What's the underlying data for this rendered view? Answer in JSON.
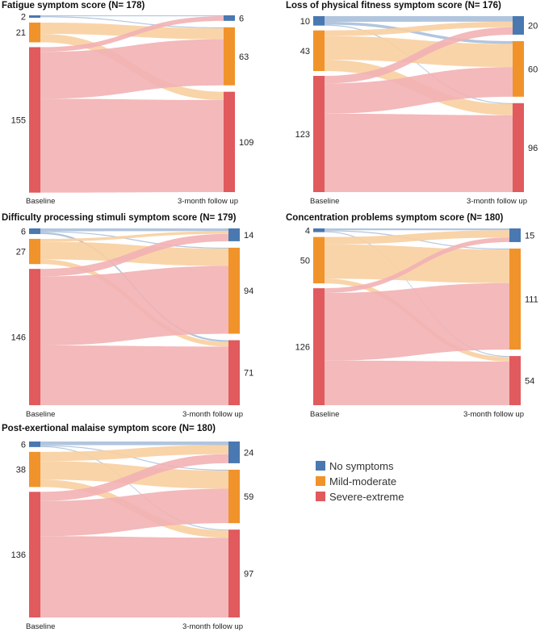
{
  "chart_data": [
    {
      "type": "sankey",
      "title": "Fatigue symptom score (N= 178)",
      "left_label": "Baseline",
      "right_label": "3-month follow up",
      "baseline": [
        2,
        21,
        155
      ],
      "followup": [
        6,
        63,
        109
      ],
      "flows": [
        [
          1,
          1,
          0
        ],
        [
          0,
          12,
          9
        ],
        [
          5,
          50,
          100
        ]
      ]
    },
    {
      "type": "sankey",
      "title": "Loss of physical fitness symptom score (N= 176)",
      "left_label": "Baseline",
      "right_label": "3-month follow up",
      "baseline": [
        10,
        43,
        123
      ],
      "followup": [
        20,
        60,
        96
      ],
      "flows": [
        [
          6,
          3,
          1
        ],
        [
          6,
          25,
          12
        ],
        [
          8,
          32,
          83
        ]
      ]
    },
    {
      "type": "sankey",
      "title": "Difficulty processing stimuli symptom score (N= 179)",
      "left_label": "Baseline",
      "right_label": "3-month follow up",
      "baseline": [
        6,
        27,
        146
      ],
      "followup": [
        14,
        94,
        71
      ],
      "flows": [
        [
          3,
          1,
          2
        ],
        [
          3,
          19,
          5
        ],
        [
          8,
          74,
          64
        ]
      ]
    },
    {
      "type": "sankey",
      "title": "Concentration problems symptom score (N= 180)",
      "left_label": "Baseline",
      "right_label": "3-month follow up",
      "baseline": [
        4,
        50,
        126
      ],
      "followup": [
        15,
        111,
        54
      ],
      "flows": [
        [
          2,
          1,
          1
        ],
        [
          8,
          37,
          5
        ],
        [
          5,
          73,
          48
        ]
      ]
    },
    {
      "type": "sankey",
      "title": "Post-exertional malaise symptom score (N= 180)",
      "left_label": "Baseline",
      "right_label": "3-month follow up",
      "baseline": [
        6,
        38,
        136
      ],
      "followup": [
        24,
        59,
        97
      ],
      "flows": [
        [
          4,
          1,
          1
        ],
        [
          10,
          20,
          8
        ],
        [
          10,
          38,
          88
        ]
      ]
    }
  ],
  "legend": {
    "items": [
      {
        "label": "No symptoms",
        "color": "#4a78b0"
      },
      {
        "label": "Mild-moderate",
        "color": "#f0932b"
      },
      {
        "label": "Severe-extreme",
        "color": "#e05a5e"
      }
    ]
  },
  "link_colors": [
    "#a9bfda",
    "#f8cfa0",
    "#f2b1b4"
  ]
}
